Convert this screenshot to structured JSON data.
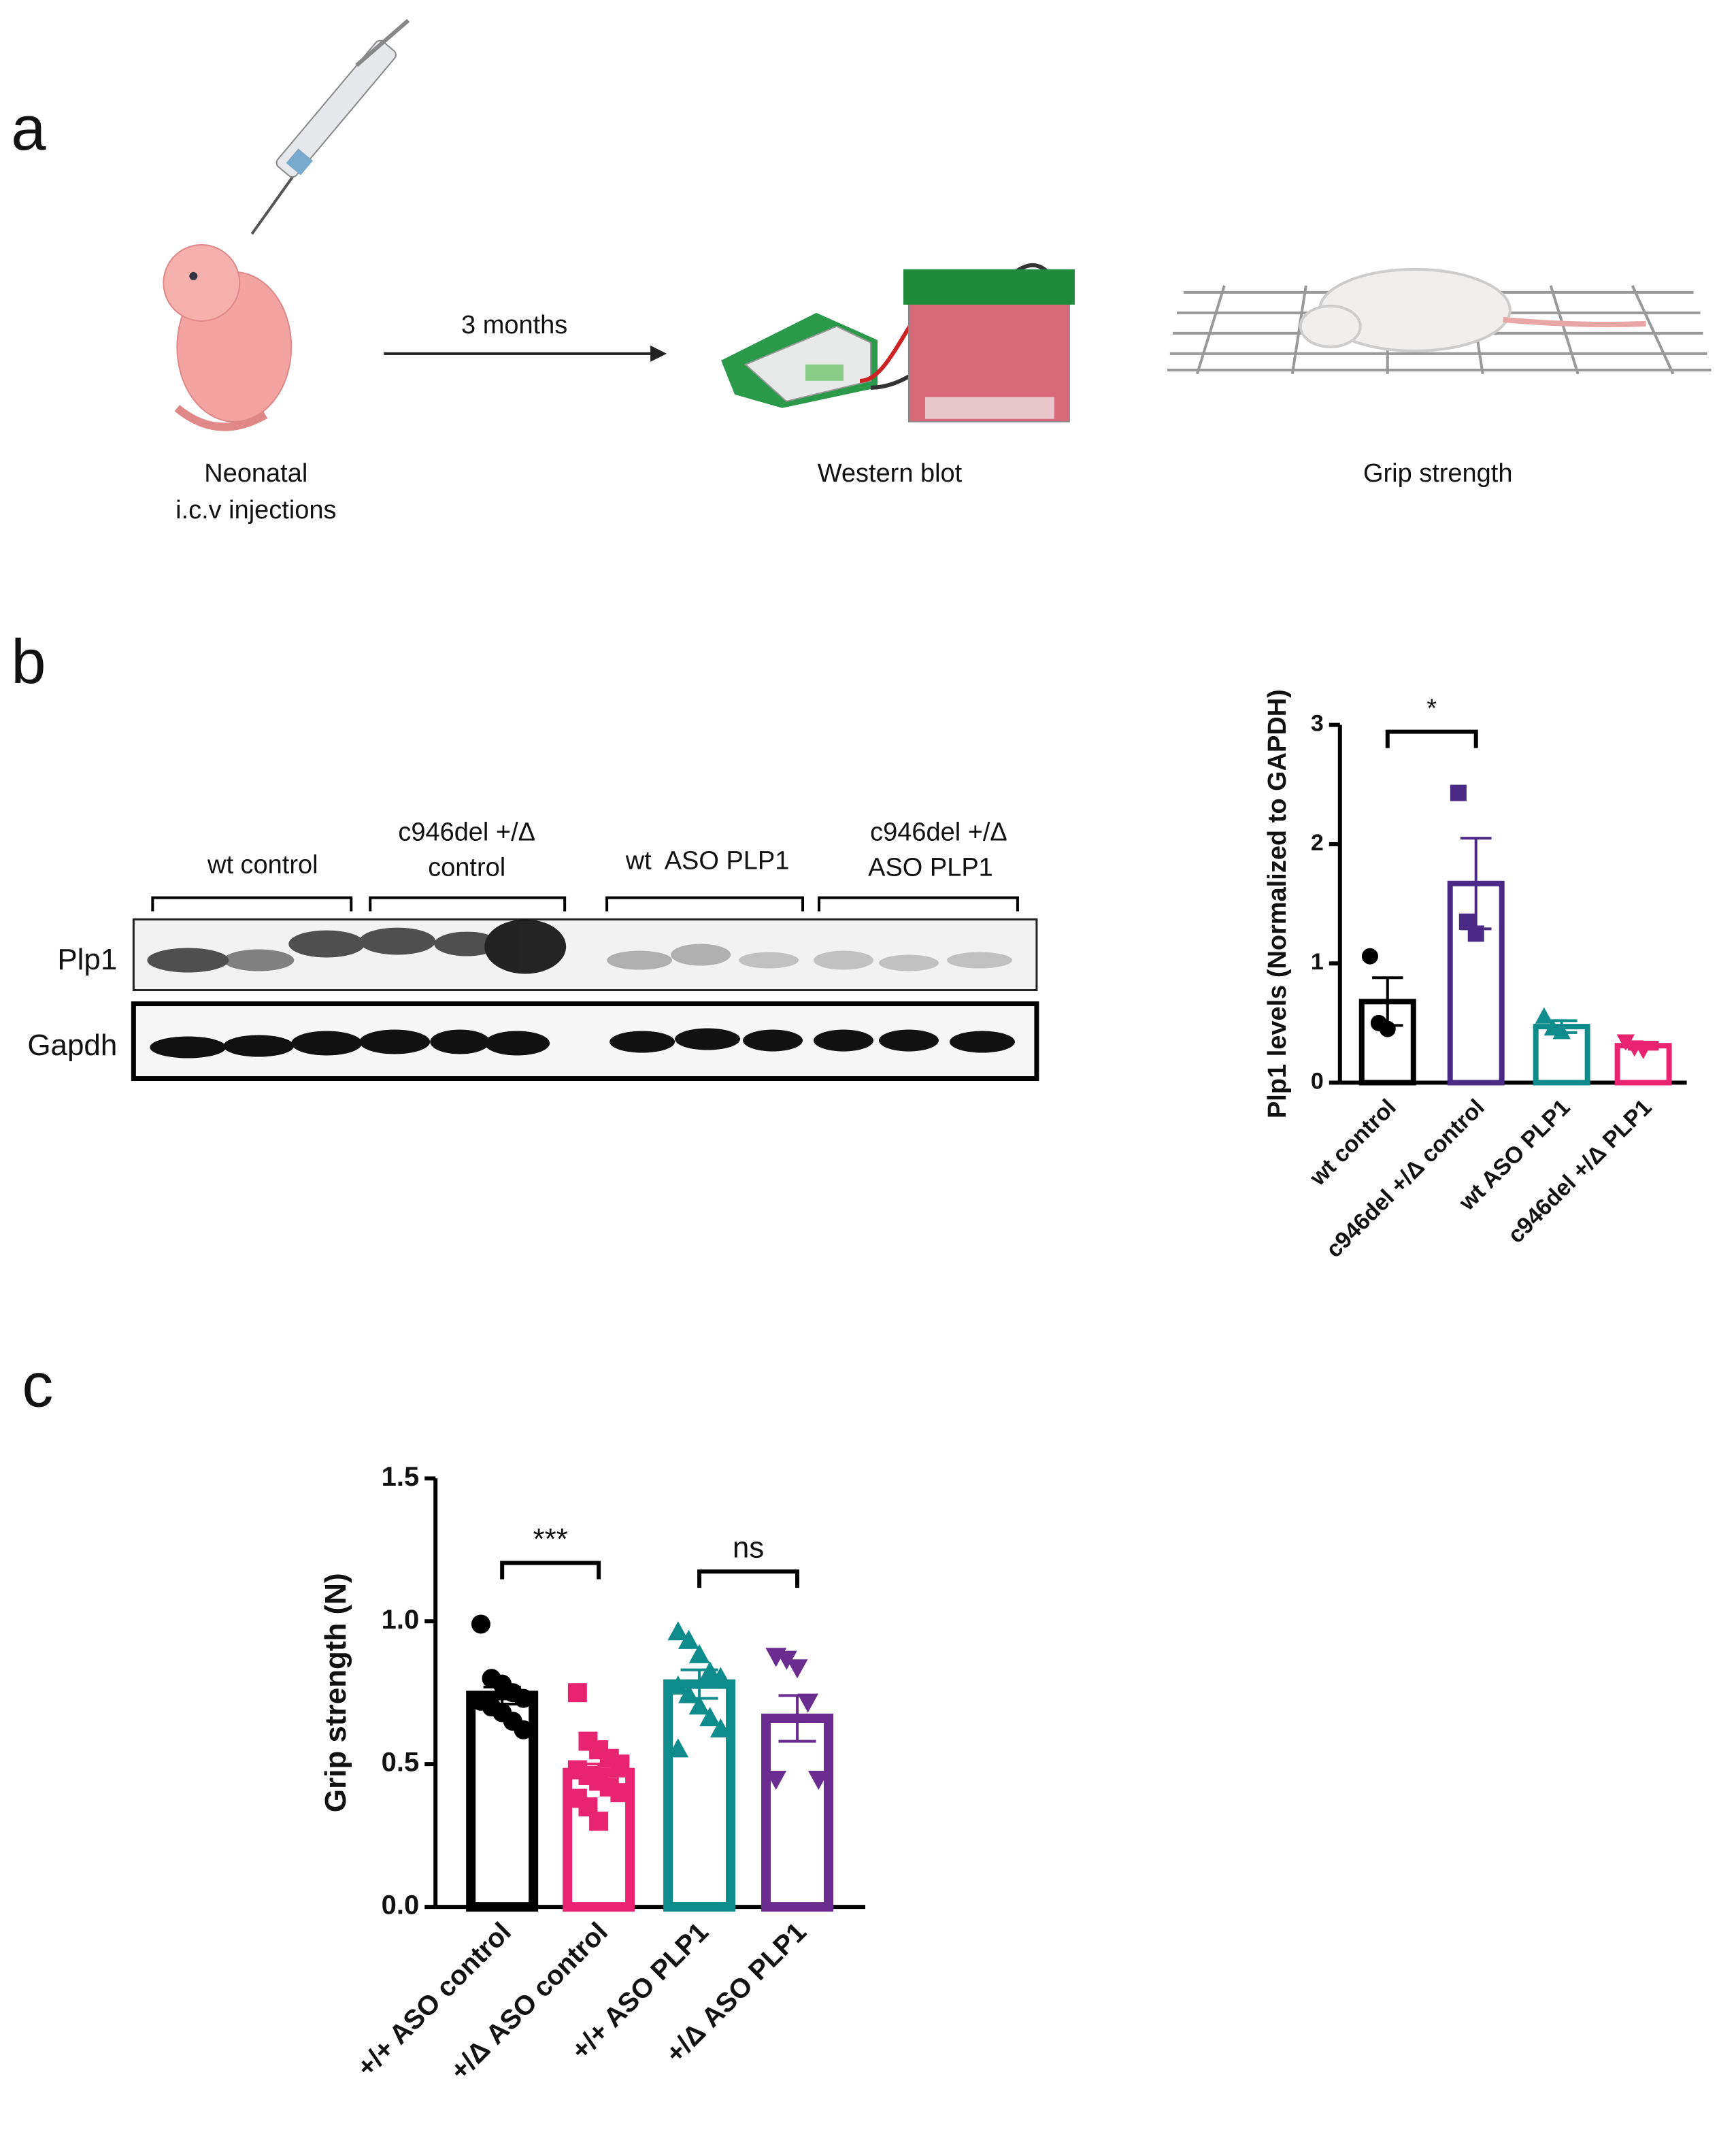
{
  "panels": [
    "a",
    "b",
    "c"
  ],
  "panel_a": {
    "injection": [
      "Neonatal",
      "i.c.v injections"
    ],
    "arrow_label": "3 months",
    "western": "Western blot",
    "grip": "Grip strength"
  },
  "blot": {
    "groups": [
      [
        "wt control"
      ],
      [
        "c946del +/Δ",
        "control"
      ],
      [
        "wt  ASO PLP1"
      ],
      [
        "c946del +/Δ",
        "ASO PLP1"
      ]
    ],
    "rows": [
      "Plp1",
      "Gapdh"
    ]
  },
  "chart_data": [
    {
      "type": "bar",
      "ylabel": "Plp1 levels (Normalized to GAPDH)",
      "categories": [
        "wt control",
        "c946del +/Δ control",
        "wt ASO PLP1",
        "c946del +/Δ PLP1"
      ],
      "values": [
        0.68,
        1.67,
        0.47,
        0.31
      ],
      "errors": [
        0.2,
        0.38,
        0.05,
        0.03
      ],
      "points": [
        [
          1.06,
          0.5,
          0.45
        ],
        [
          2.43,
          1.35,
          1.25
        ],
        [
          0.55,
          0.45,
          0.42
        ],
        [
          0.35,
          0.3,
          0.28
        ]
      ],
      "colors": [
        "#000000",
        "#4b2a86",
        "#0e8c8c",
        "#e8236f"
      ],
      "markers": [
        "circle",
        "square",
        "triangle",
        "triangle-down"
      ],
      "ylim": [
        0,
        3
      ],
      "yticks": [
        0,
        1,
        2,
        3
      ],
      "brackets": [
        {
          "from": 0,
          "to": 1,
          "label": "*"
        }
      ]
    },
    {
      "type": "bar",
      "ylabel": "Grip strength (N)",
      "categories": [
        "+/+ ASO control",
        "+/Δ ASO control",
        "+/+ ASO PLP1",
        "+/Δ ASO PLP1"
      ],
      "values": [
        0.74,
        0.47,
        0.78,
        0.66
      ],
      "errors": [
        0.03,
        0.03,
        0.05,
        0.08
      ],
      "points": [
        [
          0.99,
          0.8,
          0.78,
          0.75,
          0.73,
          0.72,
          0.7,
          0.68,
          0.65,
          0.62
        ],
        [
          0.75,
          0.58,
          0.55,
          0.52,
          0.5,
          0.48,
          0.46,
          0.44,
          0.42,
          0.4,
          0.38,
          0.35,
          0.3
        ],
        [
          0.96,
          0.93,
          0.88,
          0.82,
          0.8,
          0.77,
          0.74,
          0.7,
          0.66,
          0.62,
          0.55
        ],
        [
          0.88,
          0.87,
          0.84,
          0.72,
          0.45,
          0.45
        ]
      ],
      "colors": [
        "#000000",
        "#e8236f",
        "#0e8c8c",
        "#6a2c8e"
      ],
      "markers": [
        "circle",
        "square",
        "triangle",
        "triangle-down"
      ],
      "ylim": [
        0,
        1.5
      ],
      "yticks": [
        {
          "value": 0,
          "label": "0.0"
        },
        0.5,
        {
          "value": 1,
          "label": "1.0"
        },
        1.5
      ],
      "brackets": [
        {
          "from": 0,
          "to": 1,
          "label": "***"
        },
        {
          "from": 2,
          "to": 3,
          "label": "ns"
        }
      ]
    }
  ]
}
